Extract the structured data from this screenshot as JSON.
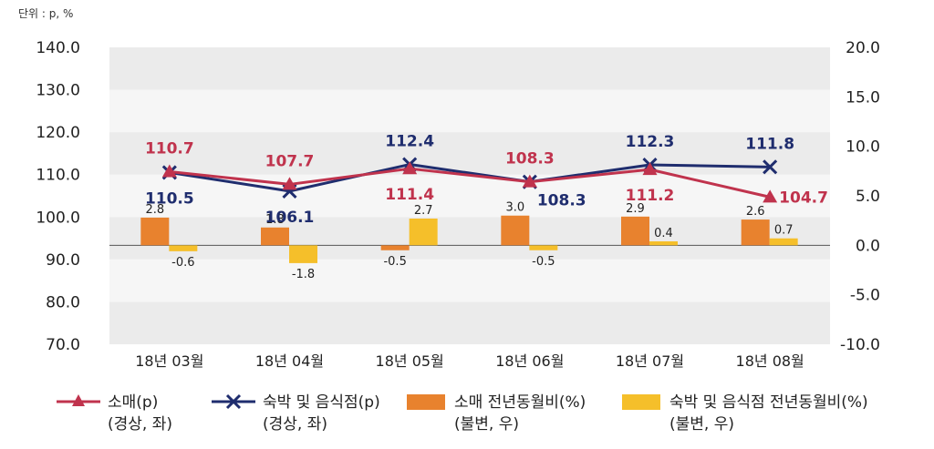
{
  "unit_label": "단위 : p, %",
  "colors": {
    "retail_line": "#c0334d",
    "lodging_line": "#1f2d6e",
    "retail_bar": "#e8822e",
    "lodging_bar": "#f5bf2a",
    "band_dark": "#ebebeb",
    "band_light": "#f6f6f6"
  },
  "legend": [
    {
      "id": "retail_idx",
      "label": "소매(p)\n(경상, 좌)",
      "icon": "triangle-line"
    },
    {
      "id": "lodging_idx",
      "label": "숙박 및 음식점(p)\n(경상, 좌)",
      "icon": "cross-line"
    },
    {
      "id": "retail_yoy",
      "label": "소매 전년동월비(%)\n(불변, 우)",
      "icon": "bar"
    },
    {
      "id": "lodging_yoy",
      "label": "숙박 및 음식점 전년동월비(%)\n(불변, 우)",
      "icon": "bar"
    }
  ],
  "chart_data": {
    "type": "bar",
    "title": "",
    "categories": [
      "18년 03월",
      "18년 04월",
      "18년 05월",
      "18년 06월",
      "18년 07월",
      "18년 08월"
    ],
    "y_left": {
      "min": 70,
      "max": 140,
      "ticks": [
        "70.0",
        "80.0",
        "90.0",
        "100.0",
        "110.0",
        "120.0",
        "130.0",
        "140.0"
      ]
    },
    "y_right": {
      "min": -10,
      "max": 20,
      "ticks": [
        "-10.0",
        "-5.0",
        "0.0",
        "5.0",
        "10.0",
        "15.0",
        "20.0"
      ]
    },
    "line_series": [
      {
        "name": "소매(p)",
        "axis": "left",
        "marker": "triangle",
        "values": [
          110.7,
          107.7,
          111.4,
          108.3,
          111.2,
          104.7
        ],
        "labels": [
          "110.7",
          "107.7",
          "111.4",
          "108.3",
          "111.2",
          "104.7"
        ]
      },
      {
        "name": "숙박 및 음식점(p)",
        "axis": "left",
        "marker": "x",
        "values": [
          110.5,
          106.1,
          112.4,
          108.3,
          112.3,
          111.8
        ],
        "labels": [
          "110.5",
          "106.1",
          "112.4",
          "108.3",
          "112.3",
          "111.8"
        ]
      }
    ],
    "bar_series": [
      {
        "name": "소매 전년동월비(%)",
        "axis": "right",
        "values": [
          2.8,
          1.8,
          -0.5,
          3.0,
          2.9,
          2.6
        ],
        "labels": [
          "2.8",
          "1.8",
          "-0.5",
          "3.0",
          "2.9",
          "2.6"
        ]
      },
      {
        "name": "숙박 및 음식점 전년동월비(%)",
        "axis": "right",
        "values": [
          -0.6,
          -1.8,
          2.7,
          -0.5,
          0.4,
          0.7
        ],
        "labels": [
          "-0.6",
          "-1.8",
          "2.7",
          "-0.5",
          "0.4",
          "0.7"
        ]
      }
    ],
    "grid": "alternating bands"
  }
}
